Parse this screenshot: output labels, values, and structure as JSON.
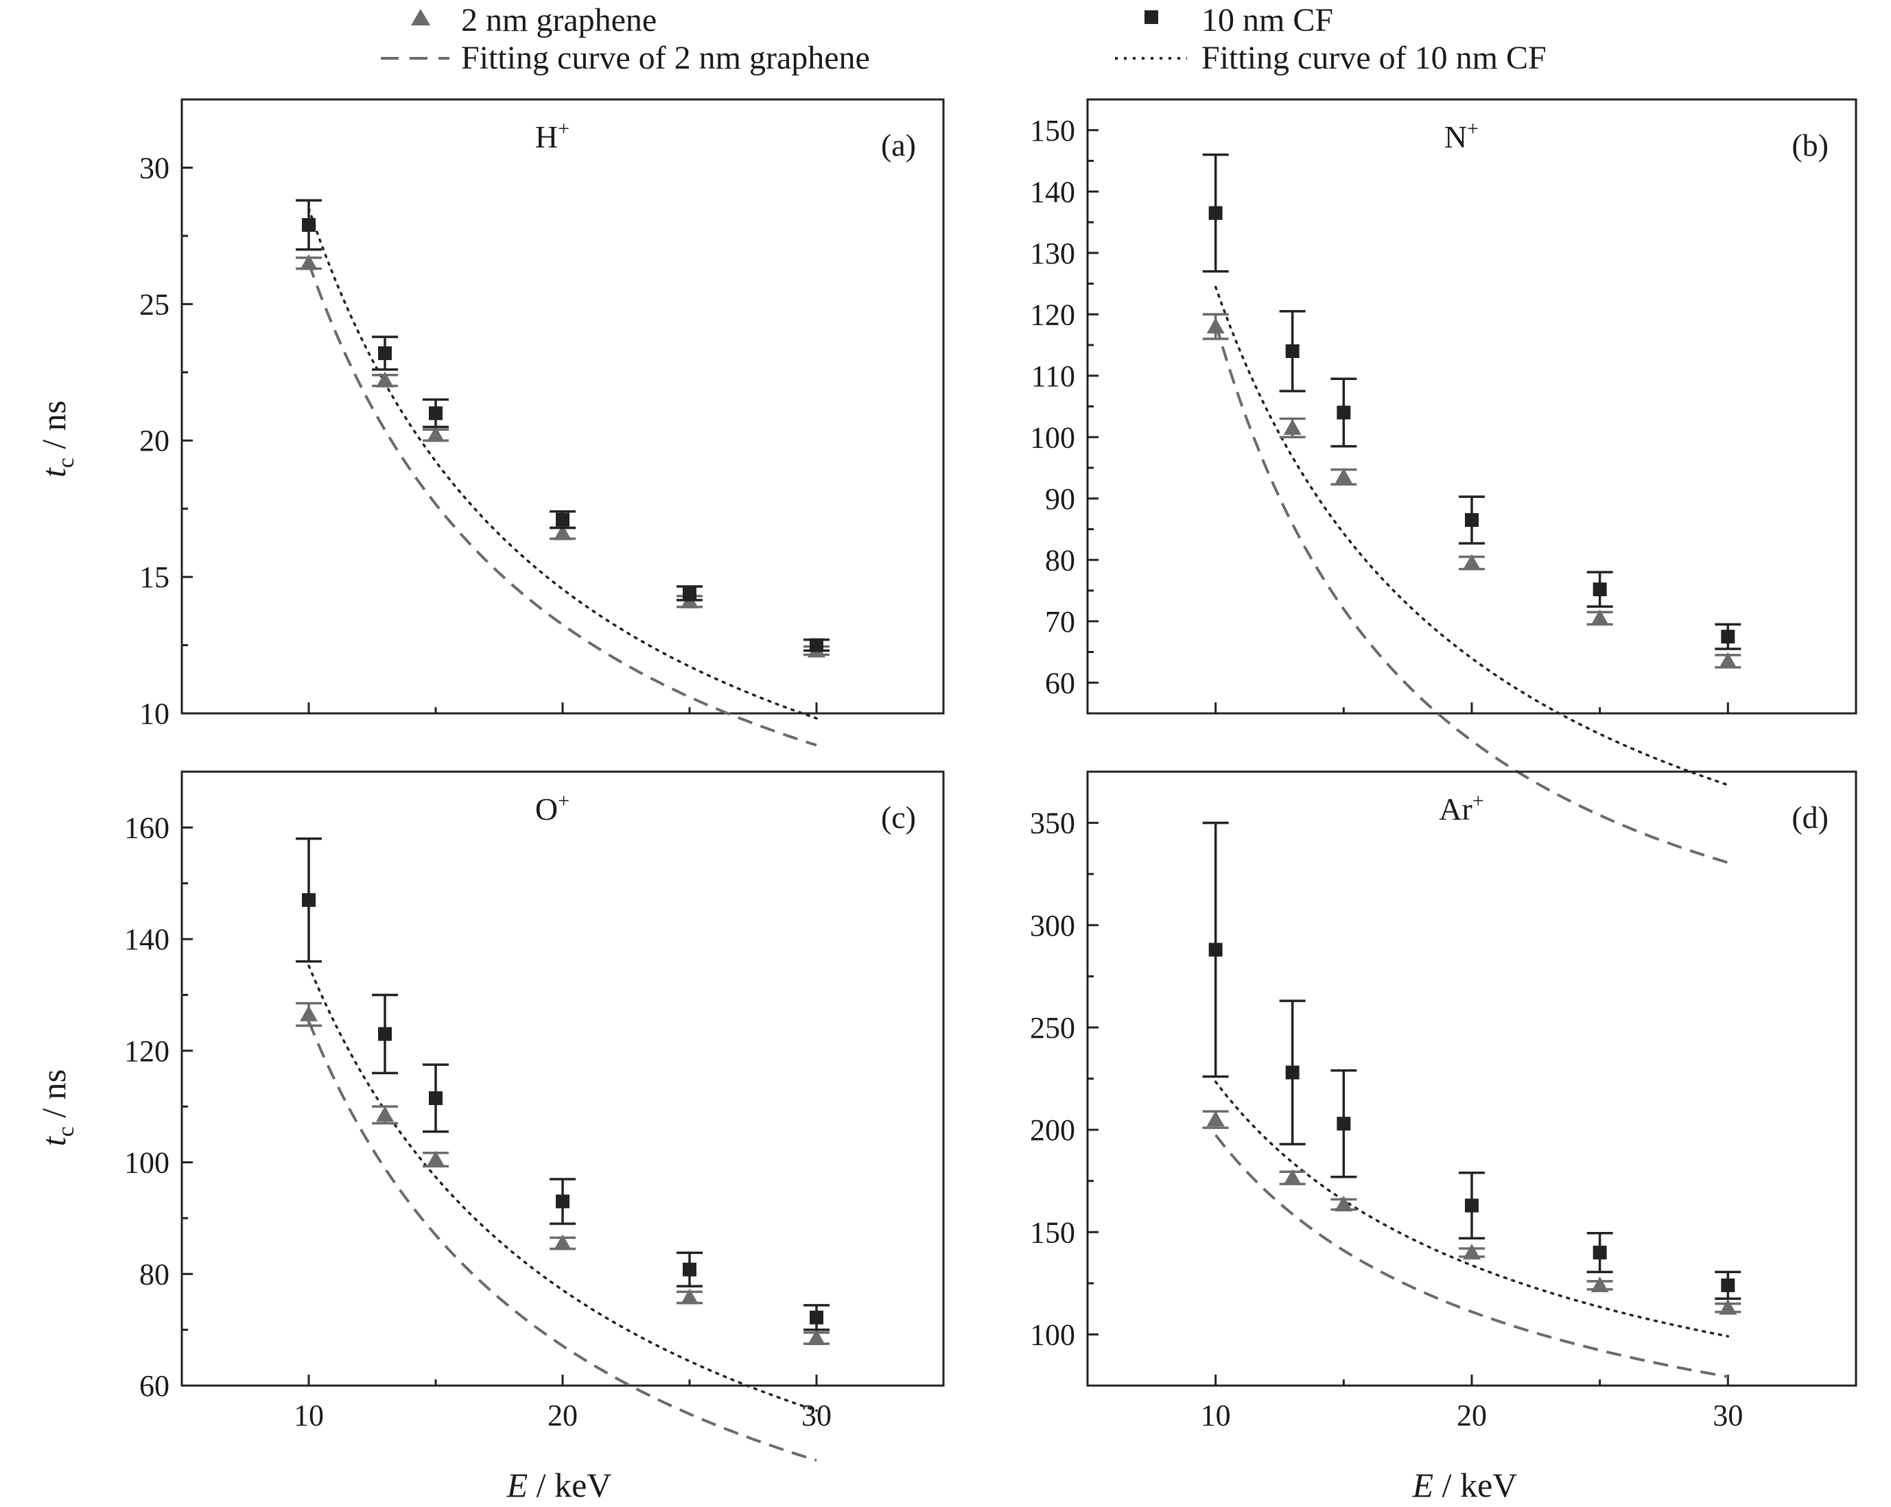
{
  "colors": {
    "graphene": "#6b6b6b",
    "cf": "#222222",
    "axis": "#222222"
  },
  "legend": {
    "graphene_points": "2 nm graphene",
    "graphene_fit": "Fitting curve of 2 nm graphene",
    "cf_points": "10 nm CF",
    "cf_fit": "Fitting curve of 10 nm CF"
  },
  "axes": {
    "xlabel_var": "E",
    "xlabel_unit": " / keV",
    "ylabel_var": "t",
    "ylabel_sub": "c",
    "ylabel_unit": " / ns"
  },
  "chart_data": [
    {
      "type": "scatter",
      "title": "H+",
      "panel": "(a)",
      "xlim": [
        5,
        35
      ],
      "xticks": [
        10,
        20,
        30
      ],
      "ylim": [
        10,
        32.5
      ],
      "yticks": [
        10,
        15,
        20,
        25,
        30
      ],
      "series": [
        {
          "name": "2 nm graphene",
          "x": [
            10,
            13,
            15,
            20,
            25,
            30
          ],
          "y": [
            26.5,
            22.2,
            20.2,
            16.6,
            14.1,
            12.3
          ],
          "err": [
            0.2,
            0.2,
            0.2,
            0.2,
            0.2,
            0.15
          ]
        },
        {
          "name": "10 nm CF",
          "x": [
            10,
            13,
            15,
            20,
            25,
            30
          ],
          "y": [
            27.9,
            23.2,
            21.0,
            17.1,
            14.4,
            12.5
          ],
          "err": [
            0.9,
            0.6,
            0.5,
            0.3,
            0.25,
            0.2
          ]
        }
      ],
      "fits": [
        {
          "name": "Fitting curve of 2 nm graphene",
          "a": 265,
          "b": 1.0
        },
        {
          "name": "Fitting curve of 10 nm CF",
          "a": 266,
          "b": 0.97
        }
      ]
    },
    {
      "type": "scatter",
      "title": "N+",
      "panel": "(b)",
      "xlim": [
        5,
        35
      ],
      "xticks": [
        10,
        20,
        30
      ],
      "ylim": [
        55,
        155
      ],
      "yticks": [
        60,
        70,
        80,
        90,
        100,
        110,
        120,
        130,
        140,
        150
      ],
      "series": [
        {
          "name": "2 nm graphene",
          "x": [
            10,
            13,
            15,
            20,
            25,
            30
          ],
          "y": [
            118,
            101.5,
            93.5,
            79.5,
            70.5,
            63.5
          ],
          "err": [
            2,
            1.5,
            1.2,
            1,
            1,
            1
          ]
        },
        {
          "name": "10 nm CF",
          "x": [
            10,
            13,
            15,
            20,
            25,
            30
          ],
          "y": [
            136.5,
            114,
            104,
            86.5,
            75.2,
            67.5
          ],
          "err": [
            9.5,
            6.5,
            5.5,
            3.8,
            2.8,
            2
          ]
        }
      ],
      "fits": [
        {
          "name": "Fitting curve of 2 nm graphene",
          "a": 2013,
          "b": 1.23
        },
        {
          "name": "Fitting curve of 10 nm CF",
          "a": 1135,
          "b": 0.96
        }
      ]
    },
    {
      "type": "scatter",
      "title": "O+",
      "panel": "(c)",
      "xlim": [
        5,
        35
      ],
      "xticks": [
        10,
        20,
        30
      ],
      "ylim": [
        60,
        170
      ],
      "yticks": [
        60,
        80,
        100,
        120,
        140,
        160
      ],
      "series": [
        {
          "name": "2 nm graphene",
          "x": [
            10,
            13,
            15,
            20,
            25,
            30
          ],
          "y": [
            126.5,
            108.5,
            100.5,
            85.5,
            75.8,
            68.5
          ],
          "err": [
            2,
            1.5,
            1.2,
            1,
            1,
            1
          ]
        },
        {
          "name": "10 nm CF",
          "x": [
            10,
            13,
            15,
            20,
            25,
            30
          ],
          "y": [
            147,
            123,
            111.5,
            93,
            80.8,
            72.2
          ],
          "err": [
            11,
            7,
            6,
            4,
            3,
            2.2
          ]
        }
      ],
      "fits": [
        {
          "name": "Fitting curve of 2 nm graphene",
          "a": 995,
          "b": 0.9
        },
        {
          "name": "Fitting curve of 10 nm CF",
          "a": 873,
          "b": 0.81
        }
      ]
    },
    {
      "type": "scatter",
      "title": "Ar+",
      "panel": "(d)",
      "xlim": [
        5,
        35
      ],
      "xticks": [
        10,
        20,
        30
      ],
      "ylim": [
        75,
        375
      ],
      "yticks": [
        100,
        150,
        200,
        250,
        300,
        350
      ],
      "series": [
        {
          "name": "2 nm graphene",
          "x": [
            10,
            13,
            15,
            20,
            25,
            30
          ],
          "y": [
            205,
            176.5,
            163.5,
            140,
            124,
            113
          ],
          "err": [
            4,
            3,
            2.5,
            2,
            2,
            2
          ]
        },
        {
          "name": "10 nm CF",
          "x": [
            10,
            13,
            15,
            20,
            25,
            30
          ],
          "y": [
            288,
            228,
            203,
            163,
            140,
            124
          ],
          "err": [
            62,
            35,
            26,
            16,
            9.5,
            6.5
          ]
        }
      ],
      "fits": [
        {
          "name": "Fitting curve of 2 nm graphene",
          "a": 1335,
          "b": 0.83
        },
        {
          "name": "Fitting curve of 10 nm CF",
          "a": 1228,
          "b": 0.74
        }
      ]
    }
  ]
}
